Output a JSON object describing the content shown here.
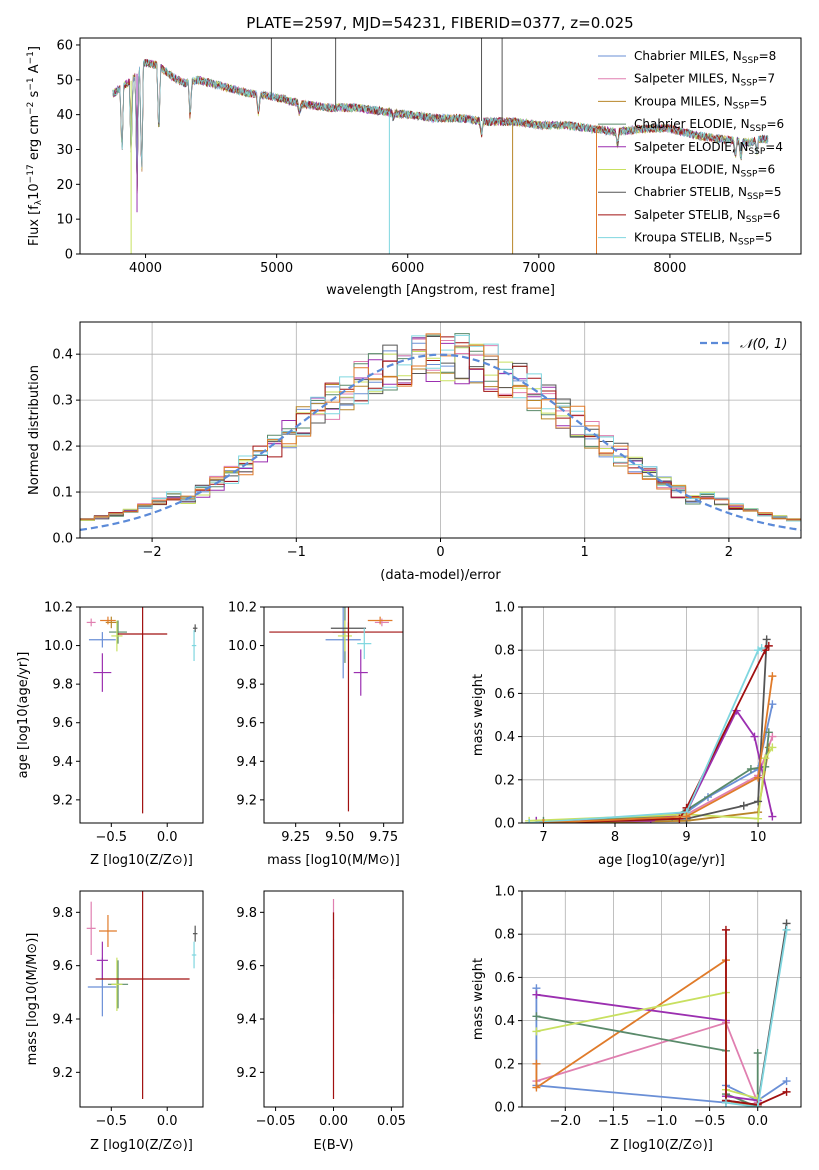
{
  "colors": {
    "cm": "#6a8fd6",
    "sm": "#e07fb0",
    "km": "#b8862a",
    "ce": "#5a8a6a",
    "se": "#9b2fb0",
    "ke": "#c8e060",
    "cs": "#555555",
    "ss": "#a01010",
    "ks": "#7fd6df",
    "orange": "#e07b2a",
    "grid": "#b0b0b0",
    "gauss": "#5b8ad8"
  },
  "chart_data": [
    {
      "type": "line",
      "title": "PLATE=2597, MJD=54231, FIBERID=0377, z=0.025",
      "xlabel": "wavelength [Angstrom, rest frame]",
      "ylabel_parts": [
        "Flux [f",
        "λ",
        "10",
        "−17",
        " erg cm",
        "−2",
        " s",
        "−1",
        " A",
        "−1",
        "]"
      ],
      "xlim": [
        3500,
        9000
      ],
      "ylim": [
        0,
        62
      ],
      "xticks": [
        "4000",
        "5000",
        "6000",
        "7000",
        "8000"
      ],
      "yticks": [
        "0",
        "10",
        "20",
        "30",
        "40",
        "50",
        "60"
      ],
      "legend_position": "upper-right",
      "series": [
        {
          "name": "Chabrier MILES",
          "nssp": "8",
          "color_key": "cm"
        },
        {
          "name": "Salpeter MILES",
          "nssp": "7",
          "color_key": "sm"
        },
        {
          "name": "Kroupa MILES",
          "nssp": "5",
          "color_key": "km"
        },
        {
          "name": "Chabrier ELODIE",
          "nssp": "6",
          "color_key": "ce"
        },
        {
          "name": "Salpeter ELODIE",
          "nssp": "4",
          "color_key": "se"
        },
        {
          "name": "Kroupa ELODIE",
          "nssp": "6",
          "color_key": "ke"
        },
        {
          "name": "Chabrier STELIB",
          "nssp": "5",
          "color_key": "cs"
        },
        {
          "name": "Salpeter STELIB",
          "nssp": "6",
          "color_key": "ss"
        },
        {
          "name": "Kroupa STELIB",
          "nssp": "5",
          "color_key": "ks"
        }
      ],
      "continuum": [
        [
          3750,
          46
        ],
        [
          3900,
          50
        ],
        [
          4000,
          55
        ],
        [
          4100,
          54
        ],
        [
          4200,
          51
        ],
        [
          4300,
          49
        ],
        [
          4400,
          50
        ],
        [
          4600,
          48
        ],
        [
          4800,
          46
        ],
        [
          5000,
          45
        ],
        [
          5200,
          43
        ],
        [
          5400,
          42
        ],
        [
          5600,
          42
        ],
        [
          5800,
          41
        ],
        [
          6000,
          40
        ],
        [
          6200,
          39
        ],
        [
          6400,
          39
        ],
        [
          6600,
          38
        ],
        [
          6800,
          38
        ],
        [
          7000,
          37
        ],
        [
          7200,
          37
        ],
        [
          7400,
          36
        ],
        [
          7600,
          35
        ],
        [
          7800,
          36
        ],
        [
          8000,
          36
        ],
        [
          8200,
          34
        ],
        [
          8400,
          33
        ],
        [
          8600,
          32
        ],
        [
          8700,
          33
        ]
      ],
      "absorption_dips": [
        [
          3820,
          28
        ],
        [
          3890,
          27
        ],
        [
          3935,
          16
        ],
        [
          3970,
          20
        ],
        [
          4101,
          33
        ],
        [
          4340,
          38
        ],
        [
          4861,
          40
        ],
        [
          5175,
          40
        ],
        [
          5890,
          39
        ],
        [
          6563,
          34
        ],
        [
          7600,
          31
        ],
        [
          8500,
          28
        ],
        [
          8542,
          27
        ],
        [
          8662,
          29
        ]
      ]
    },
    {
      "type": "histogram",
      "xlabel": "(data-model)/error",
      "ylabel": "Normed distribution",
      "xlim": [
        -2.5,
        2.5
      ],
      "ylim": [
        0,
        0.47
      ],
      "xticks": [
        "−2",
        "−1",
        "0",
        "1",
        "2"
      ],
      "yticks": [
        "0.0",
        "0.1",
        "0.2",
        "0.3",
        "0.4"
      ],
      "reference_curve": "𝒩(0, 1)",
      "legend_position": "upper-right",
      "bin_width": 0.1,
      "bin_start": -2.6,
      "peak_values": [
        0.46,
        0.44,
        0.43,
        0.42,
        0.41,
        0.41,
        0.4,
        0.39,
        0.38
      ]
    },
    {
      "type": "scatter",
      "xlabel": "Z [log10(Z/Z⊙)]",
      "ylabel": "age  [log10(age/yr)]",
      "xlim": [
        -0.78,
        0.32
      ],
      "ylim": [
        9.08,
        10.2
      ],
      "xticks": [
        "−0.5",
        "0.0"
      ],
      "yticks": [
        "9.2",
        "9.4",
        "9.6",
        "9.8",
        "10.0",
        "10.2"
      ],
      "points": [
        {
          "x": -0.58,
          "y": 10.03,
          "ex": 0.12,
          "ey": 0.04,
          "color_key": "cm"
        },
        {
          "x": -0.68,
          "y": 10.12,
          "ex": 0.04,
          "ey": 0.02,
          "color_key": "sm"
        },
        {
          "x": -0.5,
          "y": 10.12,
          "ex": 0.05,
          "ey": 0.03,
          "color_key": "km"
        },
        {
          "x": -0.44,
          "y": 10.07,
          "ex": 0.08,
          "ey": 0.06,
          "color_key": "ce"
        },
        {
          "x": -0.58,
          "y": 9.86,
          "ex": 0.08,
          "ey": 0.1,
          "color_key": "se"
        },
        {
          "x": -0.45,
          "y": 10.05,
          "ex": 0.05,
          "ey": 0.08,
          "color_key": "ke"
        },
        {
          "x": 0.25,
          "y": 10.09,
          "ex": 0.02,
          "ey": 0.02,
          "color_key": "cs"
        },
        {
          "x": -0.22,
          "y": 10.06,
          "ex": 0.22,
          "ey": 0.93,
          "color_key": "ss"
        },
        {
          "x": 0.24,
          "y": 10.0,
          "ex": 0.02,
          "ey": 0.08,
          "color_key": "ks"
        },
        {
          "x": -0.53,
          "y": 10.13,
          "ex": 0.07,
          "ey": 0.02,
          "color_key": "orange"
        }
      ]
    },
    {
      "type": "scatter",
      "xlabel": "mass [log10(M/M⊙)]",
      "ylabel": "",
      "xlim": [
        9.07,
        9.86
      ],
      "ylim": [
        9.08,
        10.2
      ],
      "xticks": [
        "9.25",
        "9.50",
        "9.75"
      ],
      "yticks": [
        "9.2",
        "9.4",
        "9.6",
        "9.8",
        "10.0",
        "10.2"
      ],
      "points": [
        {
          "x": 9.52,
          "y": 10.03,
          "ex": 0.1,
          "ey": 0.2,
          "color_key": "cm"
        },
        {
          "x": 9.74,
          "y": 10.12,
          "ex": 0.04,
          "ey": 0.02,
          "color_key": "sm"
        },
        {
          "x": 9.73,
          "y": 10.13,
          "ex": 0.07,
          "ey": 0.02,
          "color_key": "orange"
        },
        {
          "x": 9.53,
          "y": 10.07,
          "ex": 0.07,
          "ey": 0.16,
          "color_key": "ce"
        },
        {
          "x": 9.62,
          "y": 9.86,
          "ex": 0.04,
          "ey": 0.12,
          "color_key": "se"
        },
        {
          "x": 9.53,
          "y": 10.05,
          "ex": 0.04,
          "ey": 0.08,
          "color_key": "ke"
        },
        {
          "x": 9.55,
          "y": 10.09,
          "ex": 0.1,
          "ey": 0.03,
          "color_key": "cs"
        },
        {
          "x": 9.55,
          "y": 10.07,
          "ex": 0.45,
          "ey": 0.93,
          "color_key": "ss"
        },
        {
          "x": 9.64,
          "y": 10.01,
          "ex": 0.04,
          "ey": 0.08,
          "color_key": "ks"
        }
      ]
    },
    {
      "type": "line",
      "xlabel": "age  [log10(age/yr)]",
      "ylabel": "mass weight",
      "xlim": [
        6.7,
        10.6
      ],
      "ylim": [
        0,
        1.0
      ],
      "xticks": [
        "7",
        "8",
        "9",
        "10"
      ],
      "yticks": [
        "0.0",
        "0.2",
        "0.4",
        "0.6",
        "0.8",
        "1.0"
      ],
      "series": [
        {
          "color_key": "cm",
          "points": [
            [
              6.9,
              0.01
            ],
            [
              8.0,
              0.01
            ],
            [
              9.0,
              0.05
            ],
            [
              9.3,
              0.12
            ],
            [
              10.0,
              0.25
            ],
            [
              10.2,
              0.55
            ]
          ]
        },
        {
          "color_key": "sm",
          "points": [
            [
              6.9,
              0.0
            ],
            [
              8.5,
              0.02
            ],
            [
              9.0,
              0.04
            ],
            [
              10.0,
              0.22
            ],
            [
              10.2,
              0.4
            ]
          ]
        },
        {
          "color_key": "km",
          "points": [
            [
              7.0,
              0.0
            ],
            [
              9.0,
              0.01
            ],
            [
              10.0,
              0.05
            ],
            [
              10.15,
              0.35
            ]
          ]
        },
        {
          "color_key": "ce",
          "points": [
            [
              7.0,
              0.01
            ],
            [
              8.8,
              0.03
            ],
            [
              9.0,
              0.06
            ],
            [
              9.9,
              0.25
            ],
            [
              10.1,
              0.26
            ],
            [
              10.15,
              0.42
            ]
          ]
        },
        {
          "color_key": "se",
          "points": [
            [
              6.9,
              0.01
            ],
            [
              8.5,
              0.01
            ],
            [
              9.0,
              0.05
            ],
            [
              9.7,
              0.52
            ],
            [
              9.95,
              0.4
            ],
            [
              10.2,
              0.03
            ]
          ]
        },
        {
          "color_key": "ke",
          "points": [
            [
              6.8,
              0.01
            ],
            [
              9.0,
              0.04
            ],
            [
              10.0,
              0.02
            ],
            [
              10.1,
              0.3
            ],
            [
              10.2,
              0.35
            ]
          ]
        },
        {
          "color_key": "cs",
          "points": [
            [
              6.8,
              0.0
            ],
            [
              9.0,
              0.02
            ],
            [
              9.8,
              0.08
            ],
            [
              10.0,
              0.1
            ],
            [
              10.12,
              0.85
            ]
          ]
        },
        {
          "color_key": "ss",
          "points": [
            [
              7.0,
              0.0
            ],
            [
              8.9,
              0.02
            ],
            [
              9.0,
              0.07
            ],
            [
              10.1,
              0.8
            ],
            [
              10.15,
              0.82
            ]
          ]
        },
        {
          "color_key": "ks",
          "points": [
            [
              6.8,
              0.0
            ],
            [
              9.0,
              0.05
            ],
            [
              10.0,
              0.8
            ],
            [
              10.05,
              0.81
            ]
          ]
        },
        {
          "color_key": "orange",
          "points": [
            [
              7.0,
              0.0
            ],
            [
              9.0,
              0.03
            ],
            [
              10.0,
              0.21
            ],
            [
              10.2,
              0.68
            ]
          ]
        }
      ]
    },
    {
      "type": "scatter",
      "xlabel": "Z [log10(Z/Z⊙)]",
      "ylabel": "mass [log10(M/M⊙)]",
      "xlim": [
        -0.78,
        0.32
      ],
      "ylim": [
        9.07,
        9.88
      ],
      "xticks": [
        "−0.5",
        "0.0"
      ],
      "yticks": [
        "9.2",
        "9.4",
        "9.6",
        "9.8"
      ],
      "points": [
        {
          "x": -0.58,
          "y": 9.52,
          "ex": 0.13,
          "ey": 0.11,
          "color_key": "cm"
        },
        {
          "x": -0.68,
          "y": 9.74,
          "ex": 0.04,
          "ey": 0.1,
          "color_key": "sm"
        },
        {
          "x": -0.53,
          "y": 9.73,
          "ex": 0.08,
          "ey": 0.06,
          "color_key": "orange"
        },
        {
          "x": -0.44,
          "y": 9.53,
          "ex": 0.09,
          "ey": 0.09,
          "color_key": "ce"
        },
        {
          "x": -0.58,
          "y": 9.62,
          "ex": 0.05,
          "ey": 0.07,
          "color_key": "se"
        },
        {
          "x": -0.45,
          "y": 9.53,
          "ex": 0.05,
          "ey": 0.1,
          "color_key": "ke"
        },
        {
          "x": 0.25,
          "y": 9.72,
          "ex": 0.02,
          "ey": 0.03,
          "color_key": "cs"
        },
        {
          "x": -0.22,
          "y": 9.55,
          "ex": 0.42,
          "ey": 0.45,
          "color_key": "ss"
        },
        {
          "x": 0.24,
          "y": 9.64,
          "ex": 0.02,
          "ey": 0.05,
          "color_key": "ks"
        }
      ]
    },
    {
      "type": "scatter",
      "xlabel": "E(B-V)",
      "ylabel": "",
      "xlim": [
        -0.06,
        0.06
      ],
      "ylim": [
        9.07,
        9.88
      ],
      "xticks": [
        "−0.05",
        "0.00",
        "0.05"
      ],
      "yticks": [
        "9.2",
        "9.4",
        "9.6",
        "9.8"
      ],
      "segments": [
        {
          "y0": 9.55,
          "y1": 9.85,
          "color_key": "sm"
        },
        {
          "y0": 9.42,
          "y1": 9.7,
          "color_key": "ks"
        },
        {
          "y0": 9.1,
          "y1": 9.8,
          "color_key": "ss"
        }
      ]
    },
    {
      "type": "line",
      "xlabel": "Z [log10(Z/Z⊙)]",
      "ylabel": "mass weight",
      "xlim": [
        -2.45,
        0.45
      ],
      "ylim": [
        0,
        1.0
      ],
      "xticks": [
        "−2.0",
        "−1.5",
        "−1.0",
        "−0.5",
        "0.0"
      ],
      "yticks": [
        "0.0",
        "0.2",
        "0.4",
        "0.6",
        "0.8",
        "1.0"
      ],
      "series": [
        {
          "color_key": "cm",
          "points": [
            [
              -2.3,
              0.55
            ],
            [
              -2.3,
              0.1
            ],
            [
              -0.33,
              0.02
            ],
            [
              -0.33,
              0.1
            ],
            [
              0.0,
              0.03
            ],
            [
              0.3,
              0.12
            ]
          ]
        },
        {
          "color_key": "sm",
          "points": [
            [
              -2.3,
              0.12
            ],
            [
              -0.33,
              0.39
            ],
            [
              0.0,
              0.02
            ]
          ]
        },
        {
          "color_key": "orange",
          "points": [
            [
              -2.3,
              0.2
            ],
            [
              -2.3,
              0.09
            ],
            [
              -0.33,
              0.68
            ],
            [
              -0.33,
              0.03
            ],
            [
              0.0,
              0.0
            ]
          ]
        },
        {
          "color_key": "ce",
          "points": [
            [
              -2.3,
              0.42
            ],
            [
              -0.33,
              0.26
            ],
            [
              -0.33,
              0.06
            ],
            [
              0.0,
              0.0
            ],
            [
              0.0,
              0.25
            ]
          ]
        },
        {
          "color_key": "se",
          "points": [
            [
              -2.3,
              0.52
            ],
            [
              -0.33,
              0.4
            ],
            [
              -0.33,
              0.05
            ],
            [
              0.0,
              0.03
            ]
          ]
        },
        {
          "color_key": "ke",
          "points": [
            [
              -2.3,
              0.35
            ],
            [
              -0.33,
              0.53
            ],
            [
              -0.33,
              0.08
            ],
            [
              0.0,
              0.04
            ]
          ]
        },
        {
          "color_key": "cs",
          "points": [
            [
              -0.33,
              0.03
            ],
            [
              0.0,
              0.01
            ],
            [
              0.3,
              0.85
            ]
          ]
        },
        {
          "color_key": "ss",
          "points": [
            [
              -0.33,
              0.82
            ],
            [
              -0.33,
              0.03
            ],
            [
              0.0,
              0.01
            ],
            [
              0.3,
              0.07
            ]
          ]
        },
        {
          "color_key": "ks",
          "points": [
            [
              -0.33,
              0.02
            ],
            [
              0.0,
              0.0
            ],
            [
              0.3,
              0.82
            ]
          ]
        }
      ]
    }
  ]
}
